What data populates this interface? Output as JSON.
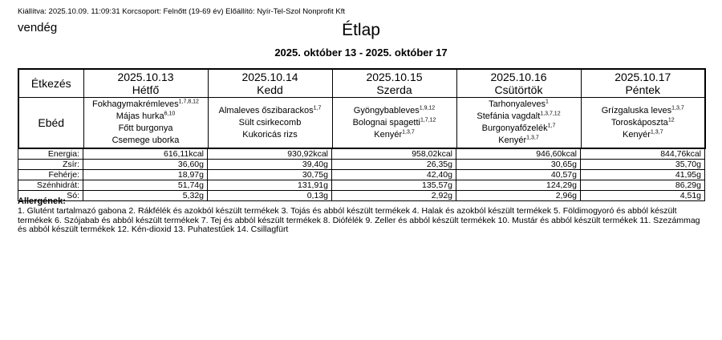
{
  "page": {
    "meta_line": "Kiállítva: 2025.10.09. 11:09:31 Korcsoport: Felnőtt (19-69 év) Előállító: Nyír-Tel-Szol Nonprofit Kft",
    "guest_label": "vendég",
    "title": "Étlap",
    "date_range": "2025. október 13 - 2025. október 17"
  },
  "menu": {
    "corner_header": "Étkezés",
    "meal_row_label": "Ebéd",
    "days": [
      {
        "date": "2025.10.13",
        "day": "Hétfő",
        "meals": [
          {
            "name": "Fokhagymakrémleves",
            "allergens": "1,7,8,12"
          },
          {
            "name": "Májas hurka",
            "allergens": "6,10"
          },
          {
            "name": "Főtt burgonya",
            "allergens": ""
          },
          {
            "name": "Csemege uborka",
            "allergens": ""
          }
        ]
      },
      {
        "date": "2025.10.14",
        "day": "Kedd",
        "meals": [
          {
            "name": "Almaleves őszibarackos",
            "allergens": "1,7"
          },
          {
            "name": "Sült csirkecomb",
            "allergens": ""
          },
          {
            "name": "Kukoricás rizs",
            "allergens": ""
          }
        ]
      },
      {
        "date": "2025.10.15",
        "day": "Szerda",
        "meals": [
          {
            "name": "Gyöngybableves",
            "allergens": "1,9,12"
          },
          {
            "name": "Bolognai spagetti",
            "allergens": "1,7,12"
          },
          {
            "name": "Kenyér",
            "allergens": "1,3,7"
          }
        ]
      },
      {
        "date": "2025.10.16",
        "day": "Csütörtök",
        "meals": [
          {
            "name": "Tarhonyaleves",
            "allergens": "1"
          },
          {
            "name": "Stefánia vagdalt",
            "allergens": "1,3,7,12"
          },
          {
            "name": "Burgonyafőzelék",
            "allergens": "1,7"
          },
          {
            "name": "Kenyér",
            "allergens": "1,3,7"
          }
        ]
      },
      {
        "date": "2025.10.17",
        "day": "Péntek",
        "meals": [
          {
            "name": "Grízgaluska leves",
            "allergens": "1,3,7"
          },
          {
            "name": "Toroskáposzta",
            "allergens": "12"
          },
          {
            "name": "Kenyér",
            "allergens": "1,3,7"
          }
        ]
      }
    ]
  },
  "nutrition": {
    "rows": [
      {
        "label": "Energia:",
        "values": [
          "616,11kcal",
          "930,92kcal",
          "958,02kcal",
          "946,60kcal",
          "844,76kcal"
        ]
      },
      {
        "label": "Zsír:",
        "values": [
          "36,60g",
          "39,40g",
          "26,35g",
          "30,65g",
          "35,70g"
        ]
      },
      {
        "label": "Fehérje:",
        "values": [
          "18,97g",
          "30,75g",
          "42,40g",
          "40,57g",
          "41,95g"
        ]
      },
      {
        "label": "Szénhidrát:",
        "values": [
          "51,74g",
          "131,91g",
          "135,57g",
          "124,29g",
          "86,29g"
        ]
      },
      {
        "label": "Só:",
        "values": [
          "5,32g",
          "0,13g",
          "2,92g",
          "2,96g",
          "4,51g"
        ]
      }
    ]
  },
  "allergens": {
    "heading": "Allergének:",
    "text": "1. Glutént tartalmazó gabona 2. Rákfélék és azokból készült termékek 3. Tojás és abból készült termékek 4. Halak és azokból készült termékek 5. Földimogyoró és abból készült termékek 6. Szójabab és abból készült termékek 7. Tej és abból készült termékek 8. Diófélék 9. Zeller és abból készült termékek 10. Mustár és abból készült termékek 11. Szezámmag és abból készült termékek 12. Kén-dioxid 13. Puhatestűek 14. Csillagfürt"
  },
  "colors": {
    "text": "#000000",
    "background": "#ffffff",
    "border": "#000000"
  }
}
